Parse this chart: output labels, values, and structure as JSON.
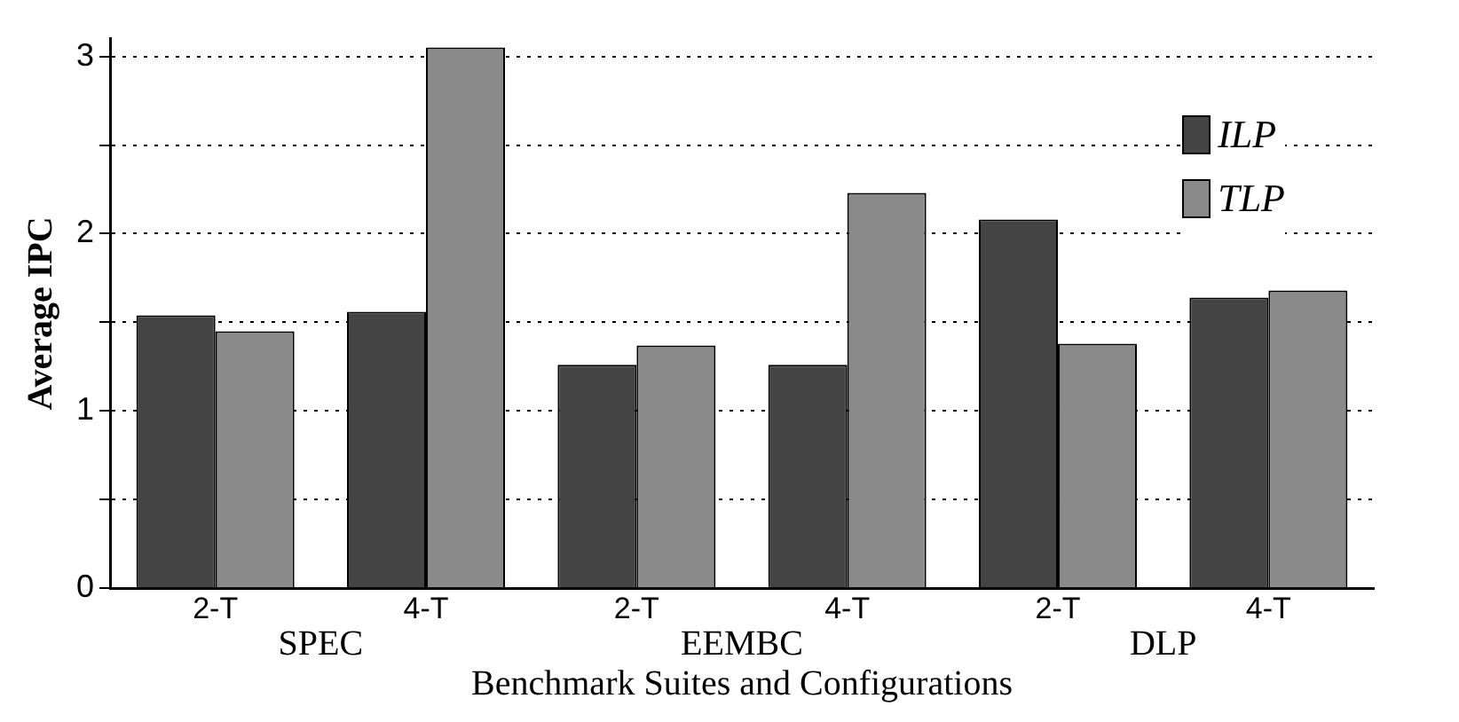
{
  "chart_data": {
    "type": "bar",
    "xlabel": "Benchmark Suites and Configurations",
    "ylabel": "Average IPC",
    "categories": [
      "2-T",
      "4-T",
      "2-T",
      "4-T",
      "2-T",
      "4-T"
    ],
    "annotations": [
      "SPEC",
      "EEMBC",
      "DLP"
    ],
    "series": [
      {
        "name": "ILP",
        "color": "#444444",
        "values": [
          1.54,
          1.56,
          1.26,
          1.26,
          2.08,
          1.64
        ]
      },
      {
        "name": "TLP",
        "color": "#8a8a8a",
        "values": [
          1.45,
          3.05,
          1.37,
          2.23,
          1.38,
          1.68
        ]
      }
    ],
    "ylim": [
      0,
      3.1
    ],
    "yticks": [
      0,
      {
        "value": 0.5,
        "label": null
      },
      1,
      {
        "value": 1.5,
        "label": null
      },
      2,
      {
        "value": 2.5,
        "label": null
      },
      3
    ],
    "grid": "y",
    "legend": "top right"
  }
}
